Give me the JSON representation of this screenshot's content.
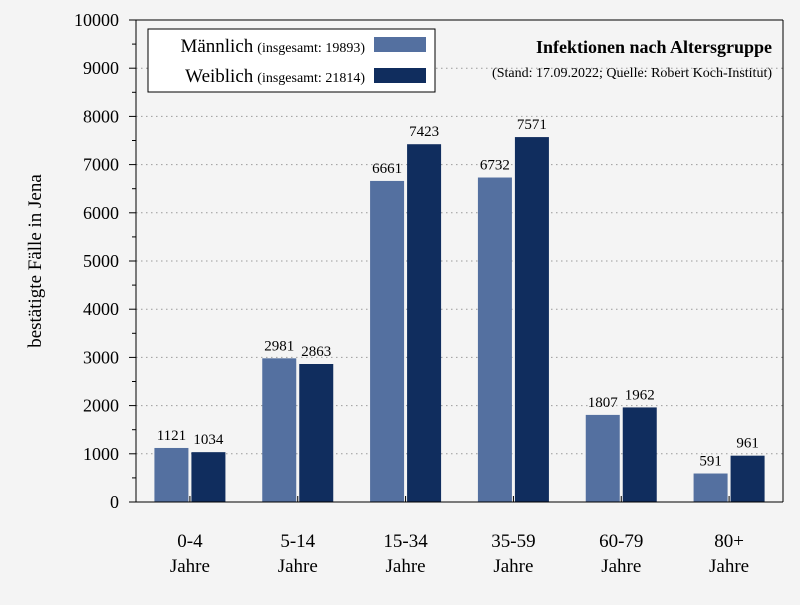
{
  "chart_data": {
    "type": "bar",
    "title": "Infektionen nach Altersgruppe",
    "subtitle": "(Stand: 17.09.2022; Quelle: Robert Koch-Institut)",
    "ylabel": "bestätigte Fälle in Jena",
    "xlabel": "",
    "ylim": [
      0,
      10000
    ],
    "yticks": [
      0,
      1000,
      2000,
      3000,
      4000,
      5000,
      6000,
      7000,
      8000,
      9000,
      10000
    ],
    "grid": "horizontal dotted",
    "legend_position": "top-left",
    "categories": [
      [
        "0-4",
        "Jahre"
      ],
      [
        "5-14",
        "Jahre"
      ],
      [
        "15-34",
        "Jahre"
      ],
      [
        "35-59",
        "Jahre"
      ],
      [
        "60-79",
        "Jahre"
      ],
      [
        "80+",
        "Jahre"
      ]
    ],
    "series": [
      {
        "name": "Männlich",
        "legend_note": "(insgesamt: 19893)",
        "color": "#5470a0",
        "values": [
          1121,
          2981,
          6661,
          6732,
          1807,
          591
        ]
      },
      {
        "name": "Weiblich",
        "legend_note": "(insgesamt: 21814)",
        "color": "#102d5e",
        "values": [
          1034,
          2863,
          7423,
          7571,
          1962,
          961
        ]
      }
    ]
  }
}
